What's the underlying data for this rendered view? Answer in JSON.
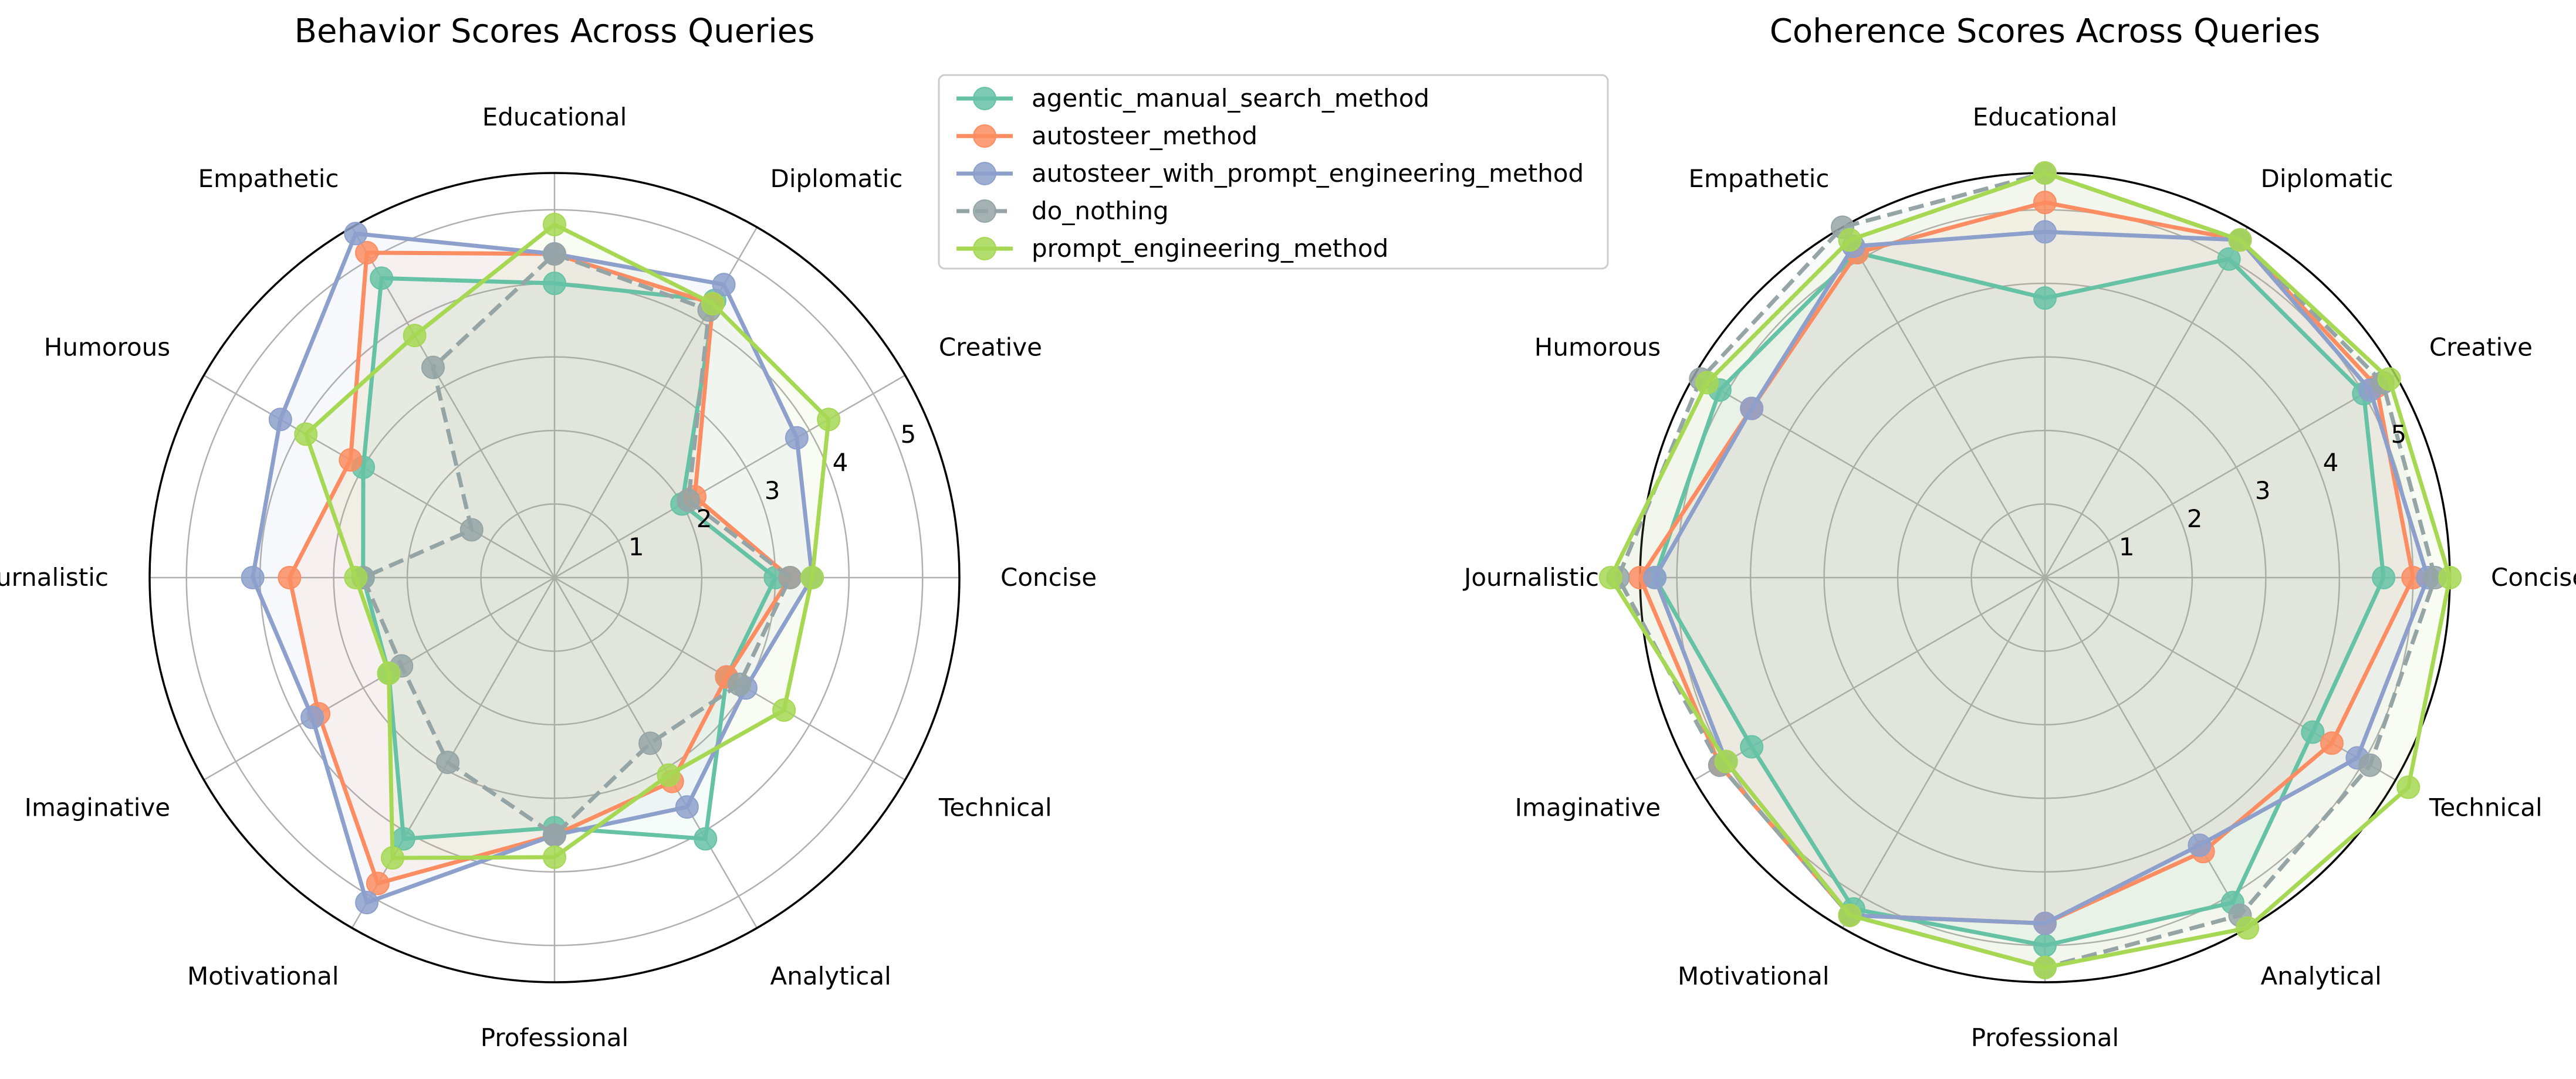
{
  "chart_data": [
    {
      "type": "radar",
      "title": "Behavior Scores Across Queries",
      "categories": [
        "Concise",
        "Creative",
        "Diplomatic",
        "Educational",
        "Empathetic",
        "Humorous",
        "Journalistic",
        "Imaginative",
        "Motivational",
        "Professional",
        "Analytical",
        "Technical"
      ],
      "rlim": [
        0,
        5.5
      ],
      "rticks": [
        "1",
        "2",
        "3",
        "4",
        "5"
      ],
      "rtick_values": [
        1,
        2,
        3,
        4,
        5
      ],
      "grid": true,
      "series": [
        {
          "name": "agentic_manual_search_method",
          "values": [
            3.0,
            2.0,
            4.35,
            4.0,
            4.7,
            3.0,
            2.6,
            2.6,
            4.1,
            3.4,
            4.1,
            2.7
          ],
          "color": "#66c2a5",
          "dashed": false
        },
        {
          "name": "autosteer_method",
          "values": [
            3.2,
            2.2,
            4.3,
            4.4,
            5.1,
            3.2,
            3.6,
            3.7,
            4.8,
            3.5,
            3.2,
            2.7
          ],
          "color": "#fc8d62",
          "dashed": false
        },
        {
          "name": "autosteer_with_prompt_engineering_method",
          "values": [
            3.5,
            3.8,
            4.6,
            4.4,
            5.4,
            4.3,
            4.1,
            3.8,
            5.1,
            3.5,
            3.6,
            3.0
          ],
          "color": "#8da0cb",
          "dashed": false
        },
        {
          "name": "do_nothing",
          "values": [
            3.2,
            2.1,
            4.2,
            4.4,
            3.3,
            1.3,
            2.6,
            2.4,
            2.9,
            3.5,
            2.6,
            2.9
          ],
          "color": "#95a5a6",
          "dashed": true
        },
        {
          "name": "prompt_engineering_method",
          "values": [
            3.5,
            4.3,
            4.3,
            4.8,
            3.8,
            3.9,
            2.7,
            2.6,
            4.4,
            3.8,
            3.1,
            3.6
          ],
          "color": "#a6d854",
          "dashed": false
        }
      ]
    },
    {
      "type": "radar",
      "title": "Coherence Scores Across Queries",
      "categories": [
        "Concise",
        "Creative",
        "Diplomatic",
        "Educational",
        "Empathetic",
        "Humorous",
        "Journalistic",
        "Imaginative",
        "Motivational",
        "Professional",
        "Analytical",
        "Technical"
      ],
      "rlim": [
        0,
        5.5
      ],
      "rticks": [
        "1",
        "2",
        "3",
        "4",
        "5"
      ],
      "rtick_values": [
        1,
        2,
        3,
        4,
        5
      ],
      "grid": true,
      "series": [
        {
          "name": "agentic_manual_search_method",
          "values": [
            4.6,
            5.0,
            5.0,
            3.8,
            5.1,
            5.1,
            5.3,
            4.6,
            5.2,
            5.0,
            5.1,
            4.2
          ],
          "color": "#66c2a5",
          "dashed": false
        },
        {
          "name": "autosteer_method",
          "values": [
            5.0,
            5.2,
            5.3,
            5.1,
            5.1,
            4.6,
            5.5,
            5.1,
            5.3,
            4.7,
            4.3,
            4.5
          ],
          "color": "#fc8d62",
          "dashed": false
        },
        {
          "name": "autosteer_with_prompt_engineering_method",
          "values": [
            5.2,
            5.1,
            5.3,
            4.7,
            5.2,
            4.6,
            5.3,
            5.0,
            5.3,
            4.7,
            4.2,
            4.9
          ],
          "color": "#8da0cb",
          "dashed": false
        },
        {
          "name": "do_nothing",
          "values": [
            5.3,
            5.3,
            5.3,
            5.5,
            5.5,
            5.4,
            5.8,
            5.1,
            5.3,
            5.3,
            5.3,
            5.1
          ],
          "color": "#95a5a6",
          "dashed": true
        },
        {
          "name": "prompt_engineering_method",
          "values": [
            5.5,
            5.4,
            5.3,
            5.5,
            5.3,
            5.3,
            5.9,
            5.0,
            5.3,
            5.3,
            5.5,
            5.7
          ],
          "color": "#a6d854",
          "dashed": false
        }
      ]
    }
  ],
  "legend": {
    "placement": "upper-center",
    "entries": [
      {
        "label": "agentic_manual_search_method",
        "color": "#66c2a5",
        "dashed": false
      },
      {
        "label": "autosteer_method",
        "color": "#fc8d62",
        "dashed": false
      },
      {
        "label": "autosteer_with_prompt_engineering_method",
        "color": "#8da0cb",
        "dashed": false
      },
      {
        "label": "do_nothing",
        "color": "#95a5a6",
        "dashed": true
      },
      {
        "label": "prompt_engineering_method",
        "color": "#a6d854",
        "dashed": false
      }
    ]
  }
}
